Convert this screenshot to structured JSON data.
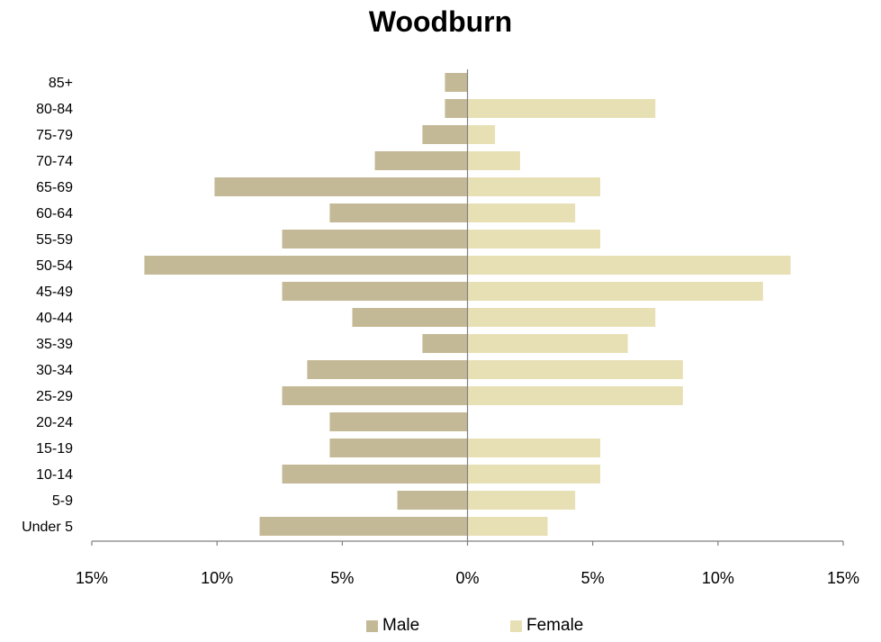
{
  "chart_data": {
    "type": "bar",
    "orientation": "horizontal",
    "title": "Woodburn",
    "categories": [
      "85+",
      "80-84",
      "75-79",
      "70-74",
      "65-69",
      "60-64",
      "55-59",
      "50-54",
      "45-49",
      "40-44",
      "35-39",
      "30-34",
      "25-29",
      "20-24",
      "15-19",
      "10-14",
      "5-9",
      "Under 5"
    ],
    "series": [
      {
        "name": "Male",
        "color": "#c4b996",
        "values": [
          -0.9,
          -0.9,
          -1.8,
          -3.7,
          -10.1,
          -5.5,
          -7.4,
          -12.9,
          -7.4,
          -4.6,
          -1.8,
          -6.4,
          -7.4,
          -5.5,
          -5.5,
          -7.4,
          -2.8,
          -8.3
        ]
      },
      {
        "name": "Female",
        "color": "#e8e0b5",
        "values": [
          0,
          7.5,
          1.1,
          2.1,
          5.3,
          4.3,
          5.3,
          12.9,
          11.8,
          7.5,
          6.4,
          8.6,
          8.6,
          0,
          5.3,
          5.3,
          4.3,
          3.2
        ]
      }
    ],
    "xlim": [
      -15,
      15
    ],
    "xticks": [
      -15,
      -10,
      -5,
      0,
      5,
      10,
      15
    ],
    "xtick_labels": [
      "15%",
      "10%",
      "5%",
      "0%",
      "5%",
      "10%",
      "15%"
    ],
    "xlabel": "",
    "ylabel": "",
    "grid": false,
    "legend_position": "bottom"
  }
}
